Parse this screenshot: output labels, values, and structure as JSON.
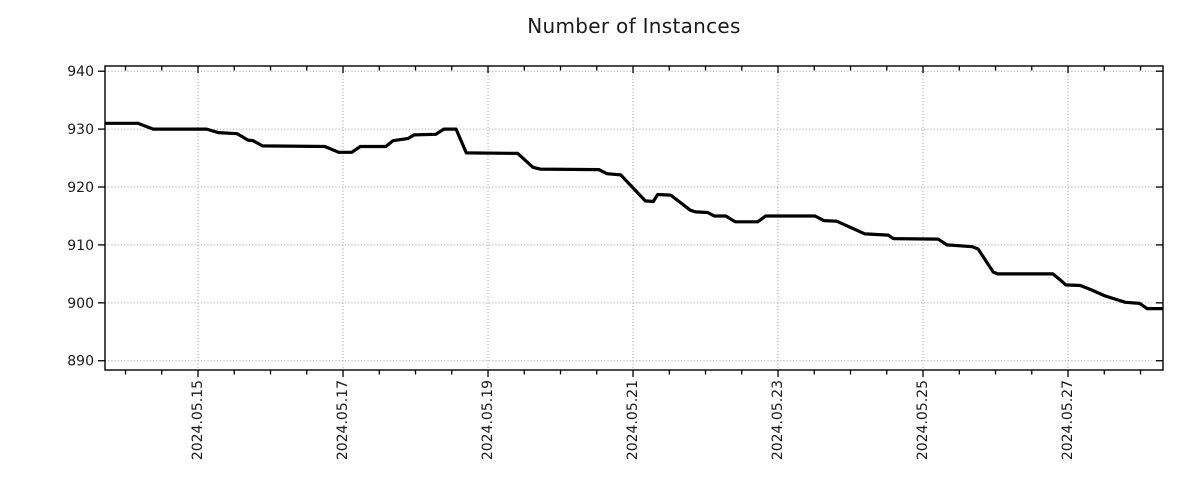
{
  "chart_data": {
    "type": "line",
    "title": "Number of Instances",
    "xlabel": "",
    "ylabel": "",
    "legend": "none",
    "grid": {
      "show": true,
      "style": "dotted",
      "color": "#9a9a9a"
    },
    "x_axis": {
      "unit": "days since 2024-05-13 00:00",
      "range": [
        0.717,
        15.31
      ],
      "major_ticks": [
        {
          "t": 2,
          "label": "2024.05.15"
        },
        {
          "t": 4,
          "label": "2024.05.17"
        },
        {
          "t": 6,
          "label": "2024.05.19"
        },
        {
          "t": 8,
          "label": "2024.05.21"
        },
        {
          "t": 10,
          "label": "2024.05.23"
        },
        {
          "t": 12,
          "label": "2024.05.25"
        },
        {
          "t": 14,
          "label": "2024.05.27"
        }
      ],
      "minor_tick_interval": 0.5,
      "label_rotation_deg": -90
    },
    "y_axis": {
      "range": [
        888.4,
        940.9
      ],
      "ticks": [
        890,
        900,
        910,
        920,
        930,
        940
      ]
    },
    "series": [
      {
        "name": "Number of Instances",
        "color": "#000000",
        "points": [
          [
            0.72,
            931
          ],
          [
            1.17,
            931
          ],
          [
            1.38,
            930
          ],
          [
            2.12,
            930
          ],
          [
            2.28,
            929.4
          ],
          [
            2.54,
            929.2
          ],
          [
            2.69,
            928.1
          ],
          [
            2.76,
            928
          ],
          [
            2.89,
            927.1
          ],
          [
            3.75,
            927
          ],
          [
            3.94,
            926
          ],
          [
            4.12,
            926
          ],
          [
            4.24,
            927
          ],
          [
            4.59,
            927
          ],
          [
            4.69,
            928
          ],
          [
            4.9,
            928.4
          ],
          [
            4.98,
            929
          ],
          [
            5.28,
            929.1
          ],
          [
            5.39,
            930
          ],
          [
            5.56,
            930
          ],
          [
            5.7,
            925.9
          ],
          [
            6.41,
            925.8
          ],
          [
            6.62,
            923.4
          ],
          [
            6.72,
            923.1
          ],
          [
            7.53,
            923
          ],
          [
            7.64,
            922.3
          ],
          [
            7.83,
            922.1
          ],
          [
            8.17,
            917.6
          ],
          [
            8.28,
            917.5
          ],
          [
            8.34,
            918.7
          ],
          [
            8.52,
            918.6
          ],
          [
            8.79,
            916
          ],
          [
            8.86,
            915.7
          ],
          [
            9.03,
            915.6
          ],
          [
            9.12,
            915
          ],
          [
            9.28,
            915
          ],
          [
            9.41,
            914
          ],
          [
            9.72,
            914
          ],
          [
            9.83,
            915
          ],
          [
            10.51,
            915
          ],
          [
            10.63,
            914.2
          ],
          [
            10.81,
            914.1
          ],
          [
            10.97,
            913.2
          ],
          [
            11.2,
            911.9
          ],
          [
            11.52,
            911.7
          ],
          [
            11.59,
            911.1
          ],
          [
            12.21,
            911
          ],
          [
            12.33,
            910
          ],
          [
            12.68,
            909.7
          ],
          [
            12.76,
            909.3
          ],
          [
            12.97,
            905.3
          ],
          [
            13.03,
            905
          ],
          [
            13.79,
            905
          ],
          [
            13.89,
            904
          ],
          [
            13.97,
            903.1
          ],
          [
            14.17,
            903
          ],
          [
            14.31,
            902.3
          ],
          [
            14.51,
            901.2
          ],
          [
            14.79,
            900.1
          ],
          [
            14.99,
            899.9
          ],
          [
            15.09,
            899
          ],
          [
            15.31,
            899
          ]
        ]
      }
    ]
  },
  "colors": {
    "background": "#ffffff",
    "frame": "#000000",
    "line": "#000000",
    "grid": "#9a9a9a",
    "text": "#1a1a1a"
  }
}
